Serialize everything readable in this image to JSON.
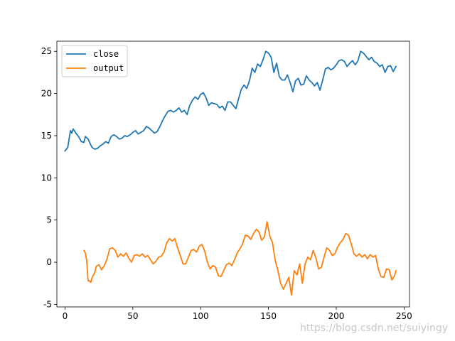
{
  "chart_data": {
    "type": "line",
    "title": "",
    "xlabel": "",
    "ylabel": "",
    "xlim": [
      -6,
      254
    ],
    "ylim": [
      -5.3,
      26.2
    ],
    "xticks": [
      0,
      50,
      100,
      150,
      200,
      250
    ],
    "yticks": [
      -5,
      0,
      5,
      10,
      15,
      20,
      25
    ],
    "grid": false,
    "legend_position": "top-left",
    "series": [
      {
        "name": "close",
        "color": "#1f77b4",
        "points": [
          [
            0,
            13.2
          ],
          [
            2,
            13.6
          ],
          [
            4,
            15.6
          ],
          [
            5,
            15.3
          ],
          [
            6,
            15.8
          ],
          [
            8,
            15.3
          ],
          [
            10,
            14.9
          ],
          [
            12,
            14.3
          ],
          [
            14,
            14.2
          ],
          [
            15,
            14.9
          ],
          [
            17,
            14.6
          ],
          [
            19,
            13.9
          ],
          [
            20,
            13.6
          ],
          [
            22,
            13.4
          ],
          [
            24,
            13.5
          ],
          [
            26,
            13.8
          ],
          [
            28,
            14.0
          ],
          [
            30,
            14.3
          ],
          [
            32,
            14.1
          ],
          [
            34,
            14.9
          ],
          [
            36,
            15.1
          ],
          [
            38,
            14.9
          ],
          [
            40,
            14.6
          ],
          [
            42,
            14.7
          ],
          [
            44,
            15.0
          ],
          [
            46,
            14.9
          ],
          [
            48,
            15.1
          ],
          [
            50,
            15.4
          ],
          [
            52,
            15.6
          ],
          [
            54,
            15.2
          ],
          [
            56,
            15.4
          ],
          [
            58,
            15.6
          ],
          [
            60,
            16.1
          ],
          [
            62,
            15.9
          ],
          [
            64,
            15.6
          ],
          [
            66,
            15.3
          ],
          [
            68,
            15.5
          ],
          [
            70,
            16.1
          ],
          [
            72,
            16.8
          ],
          [
            74,
            17.4
          ],
          [
            76,
            17.9
          ],
          [
            78,
            18.0
          ],
          [
            80,
            17.8
          ],
          [
            82,
            18.0
          ],
          [
            84,
            18.3
          ],
          [
            86,
            17.8
          ],
          [
            88,
            18.0
          ],
          [
            90,
            17.5
          ],
          [
            92,
            18.6
          ],
          [
            94,
            19.2
          ],
          [
            96,
            19.6
          ],
          [
            98,
            19.3
          ],
          [
            100,
            19.9
          ],
          [
            102,
            20.1
          ],
          [
            104,
            19.5
          ],
          [
            106,
            18.6
          ],
          [
            108,
            18.9
          ],
          [
            110,
            18.8
          ],
          [
            112,
            18.7
          ],
          [
            114,
            18.3
          ],
          [
            116,
            18.5
          ],
          [
            118,
            18.0
          ],
          [
            120,
            19.0
          ],
          [
            122,
            19.0
          ],
          [
            124,
            18.6
          ],
          [
            126,
            18.2
          ],
          [
            128,
            19.4
          ],
          [
            130,
            20.5
          ],
          [
            132,
            21.0
          ],
          [
            134,
            20.6
          ],
          [
            136,
            21.5
          ],
          [
            138,
            23.0
          ],
          [
            140,
            22.5
          ],
          [
            142,
            23.5
          ],
          [
            144,
            23.2
          ],
          [
            146,
            24.0
          ],
          [
            148,
            25.0
          ],
          [
            150,
            24.8
          ],
          [
            152,
            24.3
          ],
          [
            154,
            22.5
          ],
          [
            156,
            23.6
          ],
          [
            158,
            22.0
          ],
          [
            160,
            21.6
          ],
          [
            162,
            21.6
          ],
          [
            164,
            22.2
          ],
          [
            166,
            21.3
          ],
          [
            168,
            20.2
          ],
          [
            170,
            21.5
          ],
          [
            172,
            21.8
          ],
          [
            174,
            21.0
          ],
          [
            176,
            21.1
          ],
          [
            178,
            22.1
          ],
          [
            180,
            21.6
          ],
          [
            182,
            21.3
          ],
          [
            184,
            20.9
          ],
          [
            186,
            21.3
          ],
          [
            188,
            20.4
          ],
          [
            190,
            21.6
          ],
          [
            192,
            22.9
          ],
          [
            194,
            23.1
          ],
          [
            196,
            22.8
          ],
          [
            198,
            23.0
          ],
          [
            200,
            23.4
          ],
          [
            202,
            23.9
          ],
          [
            204,
            24.0
          ],
          [
            206,
            23.8
          ],
          [
            208,
            23.2
          ],
          [
            210,
            23.6
          ],
          [
            212,
            23.9
          ],
          [
            214,
            23.4
          ],
          [
            216,
            23.9
          ],
          [
            218,
            25.0
          ],
          [
            220,
            24.8
          ],
          [
            222,
            24.4
          ],
          [
            224,
            24.0
          ],
          [
            226,
            24.3
          ],
          [
            228,
            23.8
          ],
          [
            230,
            23.6
          ],
          [
            232,
            23.2
          ],
          [
            234,
            23.4
          ],
          [
            236,
            22.5
          ],
          [
            238,
            23.2
          ],
          [
            240,
            23.3
          ],
          [
            242,
            22.6
          ],
          [
            244,
            23.2
          ]
        ]
      },
      {
        "name": "output",
        "color": "#ff7f0e",
        "points": [
          [
            14,
            1.4
          ],
          [
            15,
            1.1
          ],
          [
            16,
            0.2
          ],
          [
            17,
            -2.2
          ],
          [
            18,
            -2.2
          ],
          [
            19,
            -2.4
          ],
          [
            20,
            -1.8
          ],
          [
            22,
            -1.2
          ],
          [
            23,
            -0.5
          ],
          [
            25,
            -0.3
          ],
          [
            27,
            -0.9
          ],
          [
            29,
            -0.4
          ],
          [
            31,
            0.4
          ],
          [
            33,
            1.6
          ],
          [
            35,
            1.7
          ],
          [
            37,
            1.4
          ],
          [
            39,
            0.6
          ],
          [
            41,
            1.0
          ],
          [
            43,
            0.7
          ],
          [
            45,
            1.1
          ],
          [
            47,
            0.5
          ],
          [
            49,
            0.0
          ],
          [
            51,
            0.8
          ],
          [
            53,
            0.9
          ],
          [
            55,
            0.7
          ],
          [
            57,
            1.0
          ],
          [
            59,
            0.6
          ],
          [
            61,
            0.8
          ],
          [
            63,
            0.3
          ],
          [
            65,
            -0.2
          ],
          [
            67,
            0.1
          ],
          [
            69,
            0.6
          ],
          [
            71,
            0.7
          ],
          [
            73,
            1.2
          ],
          [
            75,
            2.3
          ],
          [
            77,
            2.8
          ],
          [
            79,
            2.5
          ],
          [
            81,
            2.8
          ],
          [
            83,
            1.7
          ],
          [
            85,
            0.8
          ],
          [
            87,
            -0.2
          ],
          [
            89,
            -0.2
          ],
          [
            91,
            0.6
          ],
          [
            93,
            1.4
          ],
          [
            95,
            1.5
          ],
          [
            97,
            1.2
          ],
          [
            99,
            1.9
          ],
          [
            101,
            2.1
          ],
          [
            103,
            1.3
          ],
          [
            105,
            0.0
          ],
          [
            107,
            -0.8
          ],
          [
            109,
            -0.4
          ],
          [
            111,
            -0.6
          ],
          [
            113,
            -1.6
          ],
          [
            115,
            -1.7
          ],
          [
            117,
            -1.0
          ],
          [
            119,
            -0.3
          ],
          [
            121,
            -0.1
          ],
          [
            123,
            -0.4
          ],
          [
            125,
            0.3
          ],
          [
            127,
            1.1
          ],
          [
            129,
            1.6
          ],
          [
            131,
            2.2
          ],
          [
            133,
            3.2
          ],
          [
            135,
            3.1
          ],
          [
            137,
            2.7
          ],
          [
            139,
            3.4
          ],
          [
            141,
            3.9
          ],
          [
            143,
            3.6
          ],
          [
            145,
            2.6
          ],
          [
            147,
            3.0
          ],
          [
            149,
            4.8
          ],
          [
            151,
            3.1
          ],
          [
            153,
            2.3
          ],
          [
            155,
            0.2
          ],
          [
            157,
            -1.0
          ],
          [
            159,
            -2.5
          ],
          [
            161,
            -3.2
          ],
          [
            163,
            -2.5
          ],
          [
            165,
            -1.8
          ],
          [
            167,
            -3.9
          ],
          [
            169,
            -1.0
          ],
          [
            171,
            -1.5
          ],
          [
            173,
            -0.2
          ],
          [
            175,
            -2.5
          ],
          [
            177,
            -0.2
          ],
          [
            179,
            0.6
          ],
          [
            181,
            0.3
          ],
          [
            183,
            1.4
          ],
          [
            185,
            0.5
          ],
          [
            187,
            -0.8
          ],
          [
            189,
            -0.6
          ],
          [
            191,
            0.6
          ],
          [
            193,
            1.7
          ],
          [
            195,
            1.4
          ],
          [
            197,
            0.8
          ],
          [
            199,
            1.0
          ],
          [
            201,
            1.8
          ],
          [
            203,
            2.3
          ],
          [
            205,
            2.7
          ],
          [
            207,
            3.4
          ],
          [
            209,
            3.2
          ],
          [
            211,
            2.2
          ],
          [
            213,
            1.0
          ],
          [
            215,
            0.7
          ],
          [
            217,
            1.0
          ],
          [
            219,
            0.6
          ],
          [
            221,
            0.9
          ],
          [
            223,
            0.4
          ],
          [
            225,
            0.9
          ],
          [
            227,
            0.6
          ],
          [
            229,
            0.8
          ],
          [
            231,
            -0.8
          ],
          [
            233,
            -1.7
          ],
          [
            235,
            -1.8
          ],
          [
            237,
            -0.8
          ],
          [
            239,
            -0.9
          ],
          [
            241,
            -2.1
          ],
          [
            243,
            -1.6
          ],
          [
            244,
            -1.0
          ]
        ]
      }
    ]
  },
  "watermark": "https://blog.csdn.net/suiyingy"
}
